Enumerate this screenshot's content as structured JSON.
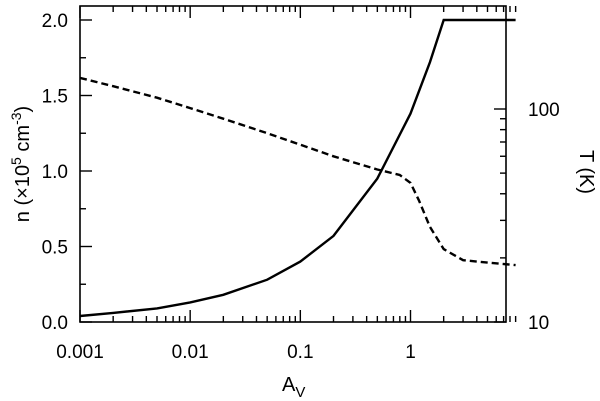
{
  "chart_data": {
    "type": "line",
    "x_axis": {
      "label_main": "A",
      "label_sub": "V",
      "scale": "log",
      "range": [
        0.001,
        9
      ],
      "tick_values": [
        0.001,
        0.01,
        0.1,
        1
      ],
      "tick_labels": [
        "0.001",
        "0.01",
        "0.1",
        "1"
      ]
    },
    "y_left": {
      "label_prefix": "n (×10",
      "label_exp1": "5",
      "label_mid": " cm",
      "label_exp2": "-3",
      "label_suffix": ")",
      "scale": "linear",
      "range": [
        0,
        2.1
      ],
      "tick_values": [
        0,
        0.5,
        1,
        1.5,
        2
      ],
      "tick_labels": [
        "0.0",
        "0.5",
        "1.0",
        "1.5",
        "2.0"
      ]
    },
    "y_right": {
      "label": "T (K)",
      "scale": "log",
      "range": [
        10,
        150
      ],
      "tick_values": [
        10,
        100
      ],
      "tick_labels": [
        "10",
        "100"
      ]
    },
    "series": [
      {
        "axis": "left",
        "style": "solid",
        "x": [
          0.001,
          0.002,
          0.005,
          0.01,
          0.02,
          0.05,
          0.1,
          0.2,
          0.5,
          1,
          1.5,
          2,
          3,
          5,
          9
        ],
        "y": [
          0.04,
          0.06,
          0.09,
          0.13,
          0.18,
          0.28,
          0.4,
          0.57,
          0.95,
          1.38,
          1.72,
          2.0,
          2.0,
          2.0,
          2.0
        ]
      },
      {
        "axis": "right",
        "style": "dashed",
        "x": [
          0.001,
          0.002,
          0.005,
          0.01,
          0.02,
          0.05,
          0.1,
          0.2,
          0.5,
          0.8,
          1.0,
          1.2,
          1.5,
          2,
          3,
          5,
          9
        ],
        "y": [
          140,
          128,
          113,
          101,
          90,
          77,
          68,
          60,
          52,
          49,
          45,
          37,
          28,
          22,
          19.5,
          19,
          18.5
        ]
      }
    ],
    "grid": false,
    "legend": "none"
  }
}
